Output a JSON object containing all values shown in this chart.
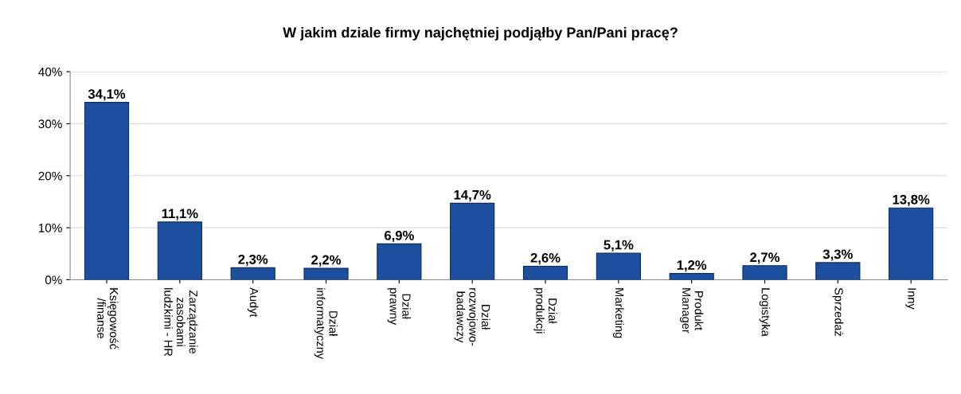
{
  "chart_data": {
    "type": "bar",
    "title": "W jakim dziale firmy najchętniej podjąłby Pan/Pani pracę?",
    "categories": [
      "Księgowość\n/finanse",
      "Zarządzanie\nzasobami\nludzkimi - HR",
      "Audyt",
      "Dział\ninformatyczny",
      "Dział\nprawny",
      "Dział\nrozwojowo-\nbadawczy",
      "Dział\nprodukcji",
      "Marketing",
      "Produkt\nManager",
      "Logistyka",
      "Sprzedaż",
      "Inny"
    ],
    "values": [
      34.1,
      11.1,
      2.3,
      2.2,
      6.9,
      14.7,
      2.6,
      5.1,
      1.2,
      2.7,
      3.3,
      13.8
    ],
    "value_labels": [
      "34,1%",
      "11,1%",
      "2,3%",
      "2,2%",
      "6,9%",
      "14,7%",
      "2,6%",
      "5,1%",
      "1,2%",
      "2,7%",
      "3,3%",
      "13,8%"
    ],
    "color": "#1c4f9e",
    "ylim": [
      0,
      40
    ],
    "yticks": [
      {
        "value": 0,
        "label": "0%"
      },
      {
        "value": 10,
        "label": "10%"
      },
      {
        "value": 20,
        "label": "20%"
      },
      {
        "value": 30,
        "label": "30%"
      },
      {
        "value": 40,
        "label": "40%"
      }
    ],
    "grid": "y"
  }
}
